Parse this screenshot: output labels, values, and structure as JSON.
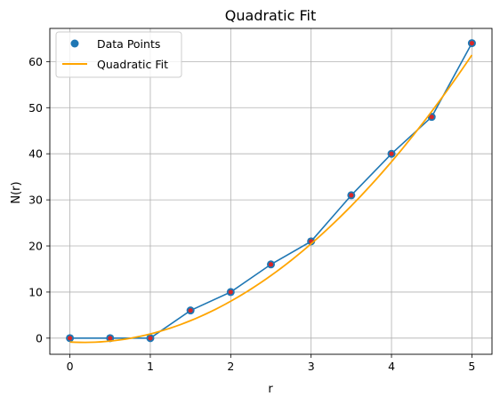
{
  "chart_data": {
    "type": "scatter",
    "title": "Quadratic Fit",
    "xlabel": "r",
    "ylabel": "N(r)",
    "xlim": [
      -0.25,
      5.25
    ],
    "ylim": [
      -3.5,
      67.2
    ],
    "xticks": [
      0,
      1,
      2,
      3,
      4,
      5
    ],
    "yticks": [
      0,
      10,
      20,
      30,
      40,
      50,
      60
    ],
    "grid": true,
    "legend_position": "top-left",
    "series": [
      {
        "name": "Data Points",
        "kind": "scatter+line",
        "color": "#1f77b4",
        "inner_color": "#d62728",
        "x": [
          0,
          0.5,
          1,
          1.5,
          2,
          2.5,
          3,
          3.5,
          4,
          4.5,
          5
        ],
        "y": [
          0,
          0,
          0,
          6,
          10,
          16,
          21,
          31,
          40,
          48,
          64
        ]
      },
      {
        "name": "Quadratic Fit",
        "kind": "line",
        "color": "#ffa500",
        "coefficients": {
          "a": 2.676,
          "b": -0.926,
          "c": -0.84
        }
      }
    ]
  }
}
